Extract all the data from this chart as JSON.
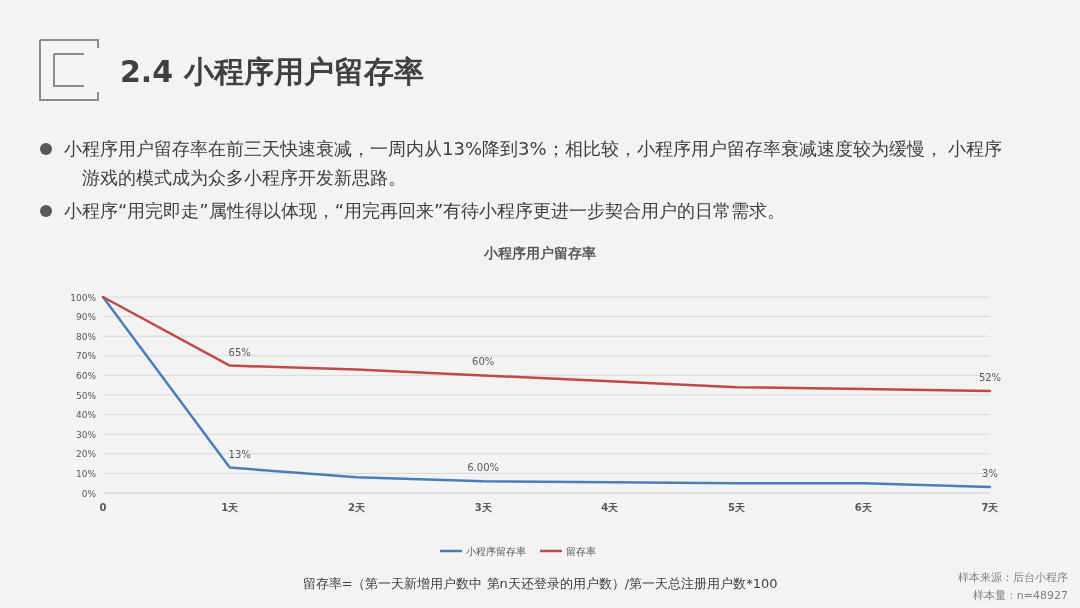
{
  "chart_data": {
    "type": "line",
    "title": "2.4 小程序用户留存率",
    "subtitle": "小程序用户留存率",
    "annotations": [
      "小程序用户留存率在前三天快速衰减，一周内从13%降到3%；相比较，小程序用户留存率衰减速度较为缓慢， 小程序游戏的模式成为众多小程序开发新思路。",
      "小程序“用完即走”属性得以体现，“用完再回来”有待小程序更进一步契合用户的日常需求。",
      "留存率=（第一天新增用户数中 第n天还登录的用户数）/第一天总注册用户数*100",
      "样本来源：后台小程序",
      "样本量：n=48927"
    ],
    "categories": [
      "0",
      "1天",
      "2天",
      "3天",
      "4天",
      "5天",
      "6天",
      "7天"
    ],
    "series": [
      {
        "name": "小程序留存率",
        "color": "#4a7ebb",
        "values": [
          100,
          13,
          8,
          6,
          5.5,
          5,
          5,
          3
        ],
        "value_labels": [
          null,
          "13%",
          null,
          "6.00%",
          null,
          null,
          null,
          "3%"
        ]
      },
      {
        "name": "留存率",
        "color": "#be4b48",
        "values": [
          100,
          65,
          63,
          60,
          57,
          54,
          53,
          52
        ],
        "value_labels": [
          null,
          "65%",
          null,
          "60%",
          null,
          null,
          null,
          "52%"
        ]
      }
    ],
    "ylim": [
      0,
      100
    ],
    "yticks": [
      {
        "value": 0,
        "label": "0%"
      },
      {
        "value": 10,
        "label": "10%"
      },
      {
        "value": 20,
        "label": "20%"
      },
      {
        "value": 30,
        "label": "30%"
      },
      {
        "value": 40,
        "label": "40%"
      },
      {
        "value": 50,
        "label": "50%"
      },
      {
        "value": 60,
        "label": "60%"
      },
      {
        "value": 70,
        "label": "70%"
      },
      {
        "value": 80,
        "label": "80%"
      },
      {
        "value": 90,
        "label": "90%"
      },
      {
        "value": 100,
        "label": "100%"
      }
    ],
    "grid": "y",
    "legend": "bottom",
    "marker": "none",
    "line_style": "solid"
  }
}
